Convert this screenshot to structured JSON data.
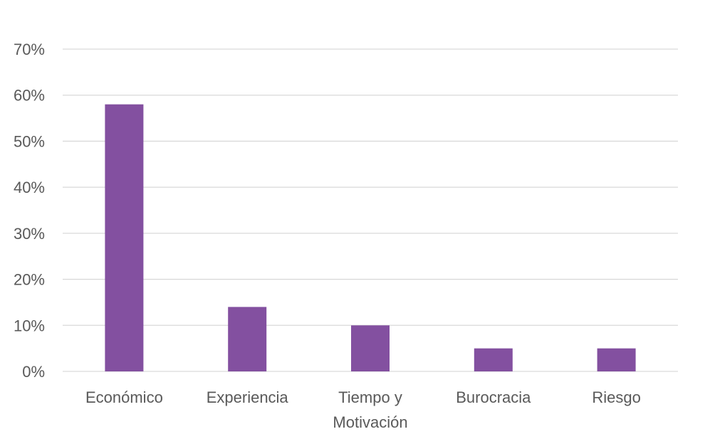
{
  "chart_data": {
    "type": "bar",
    "title": "",
    "xlabel": "",
    "ylabel": "",
    "categories": [
      [
        "Económico"
      ],
      [
        "Experiencia"
      ],
      [
        "Tiempo y",
        "Motivación"
      ],
      [
        "Burocracia"
      ],
      [
        "Riesgo"
      ]
    ],
    "values": [
      58,
      14,
      10,
      5,
      5
    ],
    "ylim": [
      0,
      70
    ],
    "yticks": [
      0,
      10,
      20,
      30,
      40,
      50,
      60,
      70
    ],
    "ytick_labels": [
      "0%",
      "10%",
      "20%",
      "30%",
      "40%",
      "50%",
      "60%",
      "70%"
    ],
    "grid": true,
    "legend": "none",
    "colors": {
      "bar": "#8350A0",
      "grid": "#D9D9D9",
      "text": "#595959"
    }
  }
}
